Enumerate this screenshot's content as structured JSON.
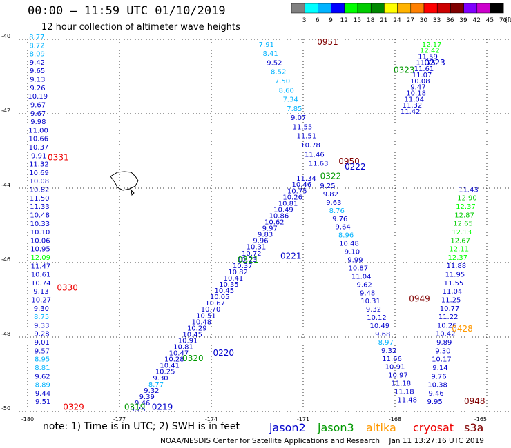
{
  "header": {
    "title": "00:00 – 11:59 UTC 01/10/2019",
    "subtitle": "12 hour collection of altimeter wave heights",
    "note": "note:  1) Time is in UTC;  2) SWH is in feet",
    "credit": "NOAA/NESDIS Center for Satellite Applications and Research    Jan 11 13:27:16 UTC 2019"
  },
  "color_scale": {
    "unit": "(ft)",
    "ticks": [
      "3",
      "6",
      "9",
      "12",
      "15",
      "18",
      "21",
      "24",
      "27",
      "30",
      "33",
      "36",
      "39",
      "42",
      "45",
      "70"
    ],
    "colors": [
      "#808080",
      "#00ffff",
      "#00b3ff",
      "#0000ff",
      "#00ff00",
      "#00cc00",
      "#008800",
      "#ffff00",
      "#ffb300",
      "#ff8000",
      "#ff0000",
      "#cc0000",
      "#800000",
      "#8000ff",
      "#cc00cc",
      "#000000"
    ]
  },
  "satellites": [
    {
      "name": "jason2",
      "color": "#0000cc"
    },
    {
      "name": "jason3",
      "color": "#009900"
    },
    {
      "name": "altika",
      "color": "#ff9900"
    },
    {
      "name": "cryosat",
      "color": "#ee0000"
    },
    {
      "name": "s3a",
      "color": "#800000"
    }
  ],
  "chart_data": {
    "type": "scatter",
    "title": "00:00 – 11:59 UTC 01/10/2019",
    "subtitle": "12 hour collection of altimeter wave heights",
    "xlabel": "",
    "ylabel": "",
    "xlim": [
      -180,
      -165
    ],
    "ylim": [
      -50,
      -40
    ],
    "x_ticks": [
      "-180",
      "-177",
      "-174",
      "-171",
      "-168",
      "-165"
    ],
    "y_ticks": [
      "-40",
      "-42",
      "-44",
      "-46",
      "-48",
      "-50"
    ],
    "grid": true,
    "value_colors": {
      "3-6": "#00b3ff",
      "6-12": "#0000cc",
      "12-15": "#00ff00",
      "15-18": "#00cc00"
    },
    "tracks": [
      {
        "id": "west",
        "sat": "jason2",
        "x_start": -179.7,
        "x_end": -179.5,
        "values": [
          8.77,
          8.72,
          8.09,
          9.42,
          9.65,
          9.13,
          9.26,
          10.19,
          9.67,
          9.67,
          9.98,
          11.0,
          10.66,
          10.37,
          9.91,
          11.32,
          10.69,
          10.08,
          10.82,
          11.5,
          11.33,
          10.48,
          10.33,
          10.1,
          10.06,
          10.95,
          12.09,
          11.47,
          10.61,
          10.74,
          9.13,
          10.27,
          9.3,
          8.75,
          9.33,
          9.28,
          9.01,
          9.57,
          8.95,
          8.81,
          9.62,
          8.89,
          9.44,
          9.51
        ]
      },
      {
        "id": "diag-south",
        "sat": "jason2",
        "x_start": -176.4,
        "x_end": -170.9,
        "values": [
          9.25,
          9.46,
          9.39,
          9.32,
          8.77,
          9.3,
          10.25,
          10.41,
          10.28,
          10.47,
          10.81,
          10.91,
          10.45,
          10.29,
          10.48,
          10.51,
          10.7,
          10.67,
          10.05,
          10.45,
          10.35,
          10.41,
          10.82,
          10.37,
          10.23,
          10.72,
          10.31,
          9.96,
          9.83,
          9.97,
          10.62,
          10.86,
          10.49,
          10.81,
          10.26,
          10.75,
          10.46,
          11.34
        ]
      },
      {
        "id": "diag-north",
        "sat": "jason2",
        "x_start": -170.8,
        "x_end": -167.2,
        "values": [
          11.63,
          11.46,
          10.78,
          11.51,
          11.55,
          9.07,
          7.85,
          7.34,
          8.6,
          7.5,
          8.52,
          9.52,
          8.41,
          7.91
        ]
      },
      {
        "id": "diag-sw",
        "sat": "jason3",
        "x_start": -170.5,
        "x_end": -166.8,
        "values": [
          11.42,
          11.32,
          11.04,
          10.18,
          9.47,
          10.08,
          11.07,
          11.61,
          11.75,
          11.59,
          12.42,
          12.17
        ]
      },
      {
        "id": "diag-se",
        "sat": "jason2",
        "x_start": -170.2,
        "x_end": -167.6,
        "values": [
          9.25,
          9.82,
          9.63,
          8.76,
          9.76,
          9.64,
          8.96,
          10.48,
          9.1,
          9.99,
          10.87,
          11.04,
          9.62,
          9.48,
          10.31,
          9.32,
          10.12,
          10.49,
          9.68,
          8.97,
          9.32,
          11.66,
          10.91,
          10.97,
          11.18,
          11.18,
          11.48
        ]
      },
      {
        "id": "east",
        "sat": "jason3",
        "x_start": -165.6,
        "x_end": -166.7,
        "values": [
          11.43,
          12.9,
          12.37,
          12.87,
          12.65,
          12.13,
          12.67,
          12.11,
          12.37,
          11.88,
          11.95,
          11.55,
          11.04,
          11.25,
          10.77,
          11.22,
          10.26,
          10.42,
          9.89,
          9.3,
          10.17,
          9.14,
          9.76,
          10.38,
          9.46,
          9.95
        ]
      }
    ],
    "pass_labels": [
      {
        "text": "0951",
        "sat": "s3a",
        "lon": -170.2,
        "lat": -40.15
      },
      {
        "text": "0223",
        "sat": "jason2",
        "lon": -166.7,
        "lat": -40.7
      },
      {
        "text": "0323",
        "sat": "jason3",
        "lon": -167.7,
        "lat": -40.9
      },
      {
        "text": "0331",
        "sat": "cryosat",
        "lon": -179.0,
        "lat": -43.25
      },
      {
        "text": "0950",
        "sat": "s3a",
        "lon": -169.5,
        "lat": -43.35
      },
      {
        "text": "0222",
        "sat": "jason2",
        "lon": -169.3,
        "lat": -43.5
      },
      {
        "text": "0322",
        "sat": "jason3",
        "lon": -170.1,
        "lat": -43.75
      },
      {
        "text": "0321",
        "sat": "jason3",
        "lon": -172.8,
        "lat": -46.0
      },
      {
        "text": "0221",
        "sat": "jason2",
        "lon": -171.4,
        "lat": -45.9
      },
      {
        "text": "0330",
        "sat": "cryosat",
        "lon": -178.7,
        "lat": -46.75
      },
      {
        "text": "0949",
        "sat": "s3a",
        "lon": -167.2,
        "lat": -47.05
      },
      {
        "text": "0428",
        "sat": "altika",
        "lon": -165.8,
        "lat": -47.85
      },
      {
        "text": "0220",
        "sat": "jason2",
        "lon": -173.6,
        "lat": -48.5
      },
      {
        "text": "0320",
        "sat": "jason3",
        "lon": -174.6,
        "lat": -48.65
      },
      {
        "text": "0329",
        "sat": "cryosat",
        "lon": -178.5,
        "lat": -49.95
      },
      {
        "text": "0319",
        "sat": "jason3",
        "lon": -176.5,
        "lat": -49.95
      },
      {
        "text": "0219",
        "sat": "jason2",
        "lon": -175.6,
        "lat": -49.95
      },
      {
        "text": "0948",
        "sat": "s3a",
        "lon": -165.4,
        "lat": -49.8
      }
    ]
  }
}
